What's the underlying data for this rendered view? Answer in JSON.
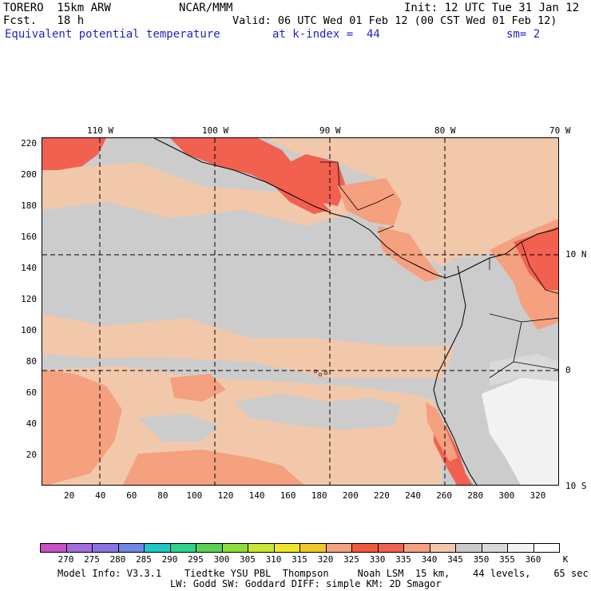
{
  "header": {
    "model": "TORERO  15km ARW",
    "forecast": "Fcst.   18 h",
    "org": "NCAR/MMM",
    "init": "Init: 12 UTC Tue 31 Jan 12",
    "valid": "Valid: 06 UTC Wed 01 Feb 12 (00 CST Wed 01 Feb 12)",
    "field": "Equivalent potential temperature",
    "level": "at k-index =  44",
    "smooth": "sm= 2"
  },
  "map": {
    "lon_labels": [
      "110 W",
      "100 W",
      "90 W",
      "80 W",
      "70 W"
    ],
    "lat_labels": [
      "10 N",
      "0",
      "10 S"
    ],
    "x_ticks": [
      "20",
      "40",
      "60",
      "80",
      "100",
      "120",
      "140",
      "160",
      "180",
      "200",
      "220",
      "240",
      "260",
      "280",
      "300",
      "320"
    ],
    "y_ticks": [
      "220",
      "200",
      "180",
      "160",
      "140",
      "120",
      "100",
      "80",
      "60",
      "40",
      "20"
    ],
    "colors": {
      "background_grey": "#cccccc",
      "tan": "#f2c8ab",
      "salmon": "#f5a07e",
      "red": "#f26050",
      "white": "#f2f2f2",
      "light_grey": "#d9d9d9"
    }
  },
  "colorbar": {
    "labels": [
      "270",
      "275",
      "280",
      "285",
      "290",
      "295",
      "300",
      "305",
      "310",
      "315",
      "320",
      "325",
      "330",
      "335",
      "340",
      "345",
      "350",
      "355",
      "360"
    ],
    "unit": "K",
    "colors": [
      "#c850c8",
      "#a46ee0",
      "#8c73e6",
      "#6e87e8",
      "#1ec8c8",
      "#2dd28c",
      "#5ad250",
      "#8cdc3c",
      "#c8e632",
      "#f0e628",
      "#f0c828",
      "#f5a07e",
      "#f05a3c",
      "#f26050",
      "#f5a07e",
      "#f2c8ab",
      "#cccccc",
      "#d9d9d9",
      "#f2f2f2",
      "#ffffff"
    ]
  },
  "footer": {
    "line1": "Model Info: V3.3.1    Tiedtke YSU PBL  Thompson     Noah LSM  15 km,    44 levels,    65 sec",
    "line2": "LW: Godd SW: Goddard DIFF: simple KM: 2D Smagor"
  }
}
